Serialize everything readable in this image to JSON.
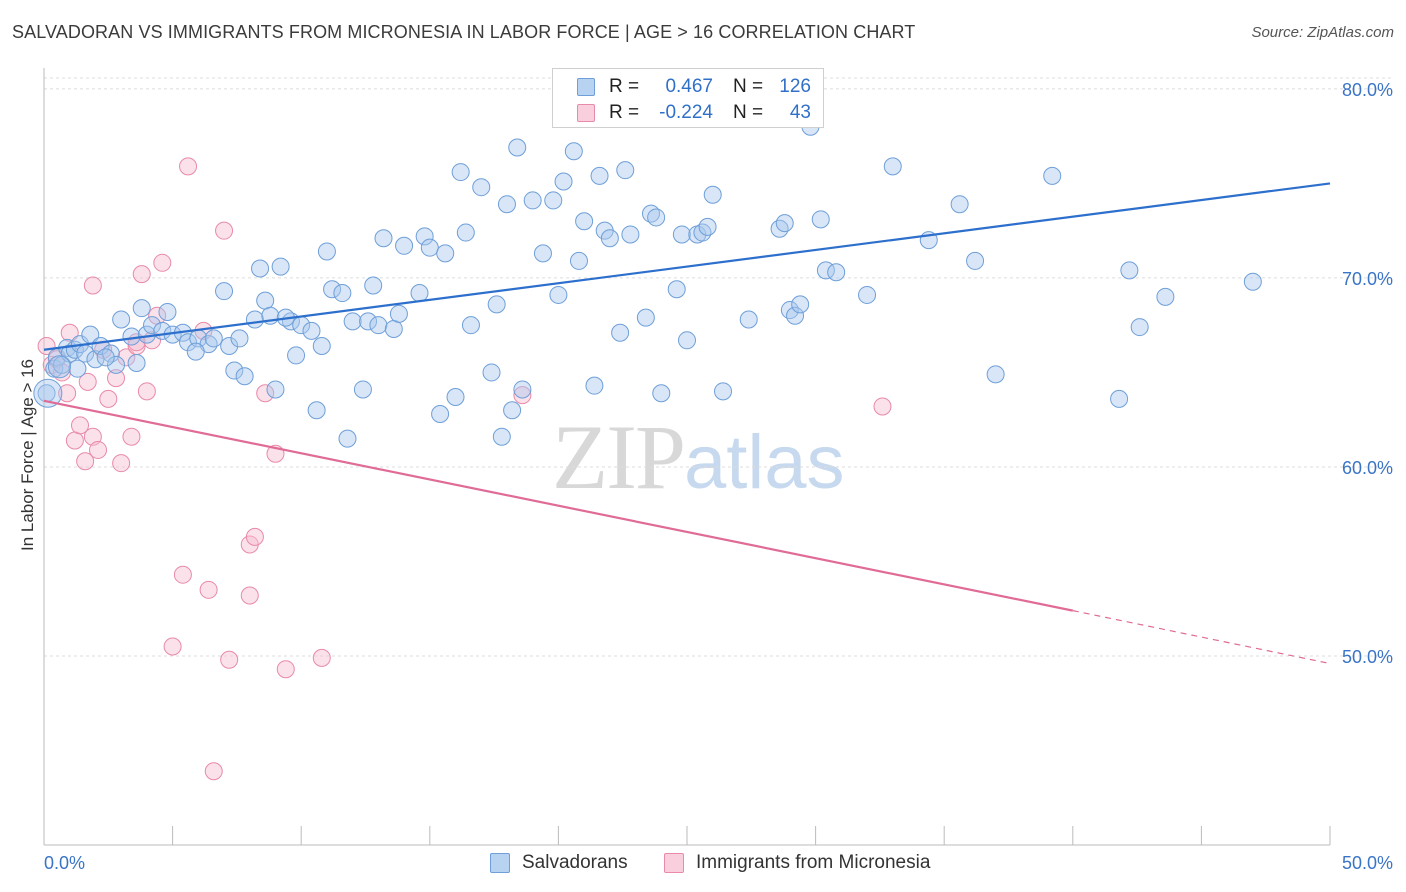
{
  "title": "SALVADORAN VS IMMIGRANTS FROM MICRONESIA IN LABOR FORCE | AGE > 16 CORRELATION CHART",
  "source": "Source: ZipAtlas.com",
  "watermark": {
    "zip": "ZIP",
    "atlas": "atlas"
  },
  "legend": {
    "rows": [
      {
        "r_label": "R =",
        "r_value": "0.467",
        "n_label": "N =",
        "n_value": "126"
      },
      {
        "r_label": "R =",
        "r_value": "-0.224",
        "n_label": "N =",
        "n_value": "43"
      }
    ]
  },
  "bottom_legend": {
    "series1": "Salvadorans",
    "series2": "Immigrants from Micronesia"
  },
  "colors": {
    "blue_fill": "#a8c8ee",
    "blue_stroke": "#6e9fd8",
    "blue_line": "#2d6fcc",
    "pink_fill": "#f6bdd0",
    "pink_stroke": "#e88aa9",
    "pink_line": "#e06b96",
    "axis_text": "#3a74c6",
    "grid": "#dcdcdc"
  },
  "chart_data": {
    "type": "scatter",
    "title": "SALVADORAN VS IMMIGRANTS FROM MICRONESIA IN LABOR FORCE | AGE > 16 CORRELATION CHART",
    "xlabel": "",
    "ylabel": "In Labor Force | Age > 16",
    "xlim": [
      0,
      50
    ],
    "ylim": [
      40,
      81
    ],
    "x_tick_labels": [
      "0.0%",
      "50.0%"
    ],
    "y_ticks": [
      50,
      60,
      70,
      80
    ],
    "y_tick_labels": [
      "50.0%",
      "60.0%",
      "70.0%",
      "80.0%"
    ],
    "grid": true,
    "legend_position": "top-center",
    "series": [
      {
        "name": "Salvadorans",
        "color": "#a8c8ee",
        "trend": {
          "x": [
            0,
            50
          ],
          "y": [
            66.2,
            75.0
          ]
        },
        "points": [
          [
            0.1,
            63.9
          ],
          [
            0.4,
            65.2
          ],
          [
            0.5,
            65.8
          ],
          [
            0.7,
            65.4
          ],
          [
            0.9,
            66.3
          ],
          [
            1.0,
            66.0
          ],
          [
            1.2,
            66.2
          ],
          [
            1.4,
            66.5
          ],
          [
            1.6,
            66.0
          ],
          [
            1.8,
            67.0
          ],
          [
            2.0,
            65.7
          ],
          [
            2.2,
            66.4
          ],
          [
            2.6,
            66.0
          ],
          [
            2.8,
            65.4
          ],
          [
            3.0,
            67.8
          ],
          [
            3.4,
            66.9
          ],
          [
            3.6,
            65.5
          ],
          [
            3.8,
            68.4
          ],
          [
            4.0,
            67.0
          ],
          [
            4.2,
            67.5
          ],
          [
            4.6,
            67.2
          ],
          [
            4.8,
            68.2
          ],
          [
            5.0,
            67.0
          ],
          [
            5.4,
            67.1
          ],
          [
            5.6,
            66.6
          ],
          [
            6.0,
            66.8
          ],
          [
            6.4,
            66.5
          ],
          [
            6.6,
            66.8
          ],
          [
            7.0,
            69.3
          ],
          [
            7.2,
            66.4
          ],
          [
            7.4,
            65.1
          ],
          [
            7.6,
            66.8
          ],
          [
            7.8,
            64.8
          ],
          [
            8.2,
            67.8
          ],
          [
            8.4,
            70.5
          ],
          [
            8.6,
            68.8
          ],
          [
            8.8,
            68.0
          ],
          [
            9.0,
            64.1
          ],
          [
            9.2,
            70.6
          ],
          [
            9.6,
            67.7
          ],
          [
            9.8,
            65.9
          ],
          [
            10.0,
            67.5
          ],
          [
            10.4,
            67.2
          ],
          [
            10.6,
            63.0
          ],
          [
            10.8,
            66.4
          ],
          [
            11.0,
            71.4
          ],
          [
            11.2,
            69.4
          ],
          [
            11.6,
            69.2
          ],
          [
            11.8,
            61.5
          ],
          [
            12.0,
            67.7
          ],
          [
            12.4,
            64.1
          ],
          [
            12.6,
            67.7
          ],
          [
            12.8,
            69.6
          ],
          [
            13.0,
            67.5
          ],
          [
            13.2,
            72.1
          ],
          [
            13.6,
            67.3
          ],
          [
            13.8,
            68.1
          ],
          [
            14.0,
            71.7
          ],
          [
            14.6,
            69.2
          ],
          [
            14.8,
            72.2
          ],
          [
            15.0,
            71.6
          ],
          [
            15.4,
            62.8
          ],
          [
            15.6,
            71.3
          ],
          [
            16.0,
            63.7
          ],
          [
            16.2,
            75.6
          ],
          [
            16.6,
            67.5
          ],
          [
            17.0,
            74.8
          ],
          [
            17.4,
            65.0
          ],
          [
            17.6,
            68.6
          ],
          [
            17.8,
            61.6
          ],
          [
            18.0,
            73.9
          ],
          [
            18.2,
            63.0
          ],
          [
            18.4,
            76.9
          ],
          [
            18.6,
            64.1
          ],
          [
            19.0,
            74.1
          ],
          [
            19.4,
            71.3
          ],
          [
            19.8,
            74.1
          ],
          [
            20.0,
            69.1
          ],
          [
            20.2,
            75.1
          ],
          [
            20.6,
            76.7
          ],
          [
            20.8,
            70.9
          ],
          [
            21.0,
            73.0
          ],
          [
            21.4,
            64.3
          ],
          [
            21.6,
            75.4
          ],
          [
            21.8,
            72.5
          ],
          [
            22.0,
            72.1
          ],
          [
            22.4,
            67.1
          ],
          [
            22.6,
            75.7
          ],
          [
            22.8,
            72.3
          ],
          [
            23.4,
            67.9
          ],
          [
            23.6,
            73.4
          ],
          [
            23.8,
            73.2
          ],
          [
            24.0,
            63.9
          ],
          [
            24.6,
            69.4
          ],
          [
            24.8,
            72.3
          ],
          [
            25.0,
            66.7
          ],
          [
            25.4,
            72.3
          ],
          [
            25.6,
            72.4
          ],
          [
            25.8,
            72.7
          ],
          [
            26.0,
            74.4
          ],
          [
            26.4,
            64.0
          ],
          [
            27.4,
            67.8
          ],
          [
            28.6,
            72.6
          ],
          [
            28.8,
            72.9
          ],
          [
            29.0,
            68.3
          ],
          [
            29.2,
            68.0
          ],
          [
            29.4,
            68.6
          ],
          [
            29.8,
            78.0
          ],
          [
            30.2,
            73.1
          ],
          [
            30.4,
            70.4
          ],
          [
            30.8,
            70.3
          ],
          [
            32.0,
            69.1
          ],
          [
            33.0,
            75.9
          ],
          [
            34.4,
            72.0
          ],
          [
            35.6,
            73.9
          ],
          [
            36.2,
            70.9
          ],
          [
            37.0,
            64.9
          ],
          [
            39.2,
            75.4
          ],
          [
            41.8,
            63.6
          ],
          [
            42.2,
            70.4
          ],
          [
            42.6,
            67.4
          ],
          [
            43.6,
            69.0
          ],
          [
            47.0,
            69.8
          ],
          [
            1.3,
            65.2
          ],
          [
            2.4,
            65.8
          ],
          [
            5.9,
            66.1
          ],
          [
            9.4,
            67.9
          ],
          [
            16.4,
            72.4
          ]
        ]
      },
      {
        "name": "Immigrants from Micronesia",
        "color": "#f6bdd0",
        "trend": {
          "x": [
            0,
            40
          ],
          "y": [
            63.5,
            52.4
          ]
        },
        "trend_dashed": {
          "x": [
            40,
            50
          ],
          "y": [
            52.4,
            49.6
          ]
        },
        "points": [
          [
            0.1,
            66.4
          ],
          [
            0.3,
            65.4
          ],
          [
            0.5,
            65.7
          ],
          [
            0.7,
            65.0
          ],
          [
            0.9,
            63.9
          ],
          [
            1.0,
            67.1
          ],
          [
            1.2,
            61.4
          ],
          [
            1.4,
            62.2
          ],
          [
            1.6,
            60.3
          ],
          [
            1.7,
            64.5
          ],
          [
            1.9,
            61.6
          ],
          [
            2.1,
            60.9
          ],
          [
            2.3,
            66.2
          ],
          [
            2.5,
            63.6
          ],
          [
            2.8,
            64.7
          ],
          [
            3.0,
            60.2
          ],
          [
            3.2,
            65.8
          ],
          [
            3.4,
            61.6
          ],
          [
            3.6,
            66.4
          ],
          [
            3.8,
            70.2
          ],
          [
            4.0,
            64.0
          ],
          [
            4.2,
            66.7
          ],
          [
            4.4,
            68.0
          ],
          [
            4.6,
            70.8
          ],
          [
            5.0,
            50.5
          ],
          [
            5.4,
            54.3
          ],
          [
            5.6,
            75.9
          ],
          [
            6.2,
            67.2
          ],
          [
            6.4,
            53.5
          ],
          [
            6.6,
            43.9
          ],
          [
            7.0,
            72.5
          ],
          [
            7.2,
            49.8
          ],
          [
            8.0,
            55.9
          ],
          [
            8.2,
            56.3
          ],
          [
            8.0,
            53.2
          ],
          [
            8.6,
            63.9
          ],
          [
            9.0,
            60.7
          ],
          [
            9.4,
            49.3
          ],
          [
            10.8,
            49.9
          ],
          [
            18.6,
            63.8
          ],
          [
            32.6,
            63.2
          ],
          [
            1.9,
            69.6
          ],
          [
            3.6,
            66.6
          ]
        ]
      }
    ]
  }
}
